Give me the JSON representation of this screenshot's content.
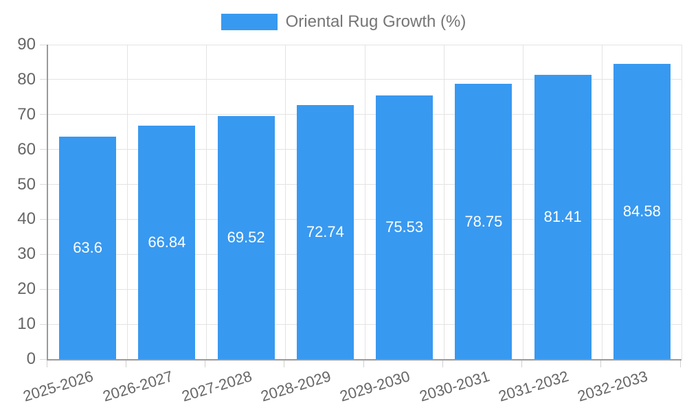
{
  "legend": {
    "label": "Oriental Rug Growth (%)"
  },
  "chart_data": {
    "type": "bar",
    "title": "Oriental Rug Growth (%)",
    "categories": [
      "2025-2026",
      "2026-2027",
      "2027-2028",
      "2028-2029",
      "2029-2030",
      "2030-2031",
      "2031-2032",
      "2032-2033"
    ],
    "values": [
      63.6,
      66.84,
      69.52,
      72.74,
      75.53,
      78.75,
      81.41,
      84.58
    ],
    "xlabel": "",
    "ylabel": "",
    "ylim": [
      0,
      90
    ],
    "ytick_step": 10,
    "grid": true,
    "legend_position": "top",
    "bar_color": "#3899f0",
    "value_label_color": "#ffffff",
    "axis_text_color": "#666666",
    "legend_text_color": "#757575",
    "gridline_color": "#e3e3e3",
    "axis_line_color": "#9a9a9a"
  }
}
